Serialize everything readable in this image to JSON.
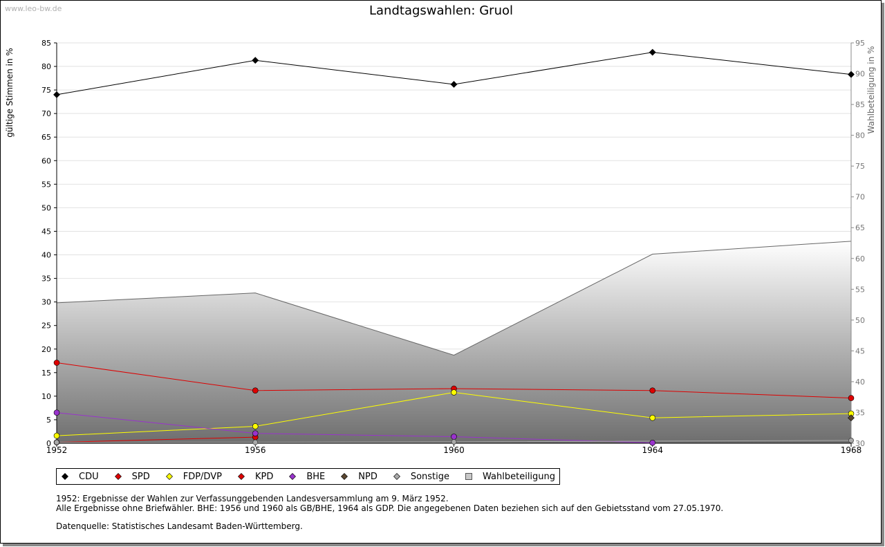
{
  "watermark": "www.leo-bw.de",
  "chart_data": {
    "type": "line",
    "title": "Landtagswahlen: Gruol",
    "ylabel": "gültige Stimmen in %",
    "y2label": "Wahlbeteiligung in %",
    "categories": [
      "1952",
      "1956",
      "1960",
      "1964",
      "1968"
    ],
    "ylim": [
      0,
      85
    ],
    "yticks": [
      "0",
      "5",
      "10",
      "15",
      "20",
      "25",
      "30",
      "35",
      "40",
      "45",
      "50",
      "55",
      "60",
      "65",
      "70",
      "75",
      "80",
      "85"
    ],
    "y2lim": [
      30,
      95
    ],
    "y2ticks": [
      "30",
      "35",
      "40",
      "45",
      "50",
      "55",
      "60",
      "65",
      "70",
      "75",
      "80",
      "85",
      "90",
      "95"
    ],
    "series": [
      {
        "name": "CDU",
        "color": "#000000",
        "values": [
          74.0,
          81.3,
          76.2,
          83.0,
          78.3
        ]
      },
      {
        "name": "SPD",
        "color": "#dd0000",
        "values": [
          17.1,
          11.2,
          11.6,
          11.2,
          9.6
        ]
      },
      {
        "name": "FDP/DVP",
        "color": "#ffff00",
        "values": [
          1.6,
          3.6,
          10.8,
          5.4,
          6.3
        ]
      },
      {
        "name": "KPD",
        "color": "#dd0000",
        "values": [
          0.2,
          1.3,
          null,
          null,
          null
        ]
      },
      {
        "name": "BHE",
        "color": "#9933cc",
        "values": [
          6.5,
          2.1,
          1.4,
          0.1,
          null
        ]
      },
      {
        "name": "NPD",
        "color": "#5a4630",
        "values": [
          null,
          null,
          null,
          null,
          5.4
        ]
      },
      {
        "name": "Sonstige",
        "color": "#aaaaaa",
        "values": [
          0.2,
          0.2,
          0.3,
          null,
          0.6
        ]
      }
    ],
    "turnout": {
      "name": "Wahlbeteiligung",
      "values": [
        52.8,
        54.4,
        44.3,
        60.7,
        62.8
      ]
    }
  },
  "legend": {
    "items": [
      {
        "label": "CDU",
        "color": "#000000",
        "shape": "diamond"
      },
      {
        "label": "SPD",
        "color": "#dd0000",
        "shape": "diamond"
      },
      {
        "label": "FDP/DVP",
        "color": "#ffff00",
        "shape": "diamond"
      },
      {
        "label": "KPD",
        "color": "#dd0000",
        "shape": "diamond"
      },
      {
        "label": "BHE",
        "color": "#9933cc",
        "shape": "diamond"
      },
      {
        "label": "NPD",
        "color": "#5a4630",
        "shape": "diamond"
      },
      {
        "label": "Sonstige",
        "color": "#aaaaaa",
        "shape": "diamond"
      },
      {
        "label": "Wahlbeteiligung",
        "color": "#c8c8c8",
        "shape": "square"
      }
    ]
  },
  "notes": {
    "line1": "1952: Ergebnisse der Wahlen zur Verfassunggebenden Landesversammlung am 9. März 1952.",
    "line2": "Alle Ergebnisse ohne Briefwähler. BHE: 1956 und 1960 als GB/BHE, 1964 als GDP. Die angegebenen Daten beziehen sich auf den Gebietsstand vom 27.05.1970.",
    "source": "Datenquelle: Statistisches Landesamt Baden-Württemberg."
  }
}
